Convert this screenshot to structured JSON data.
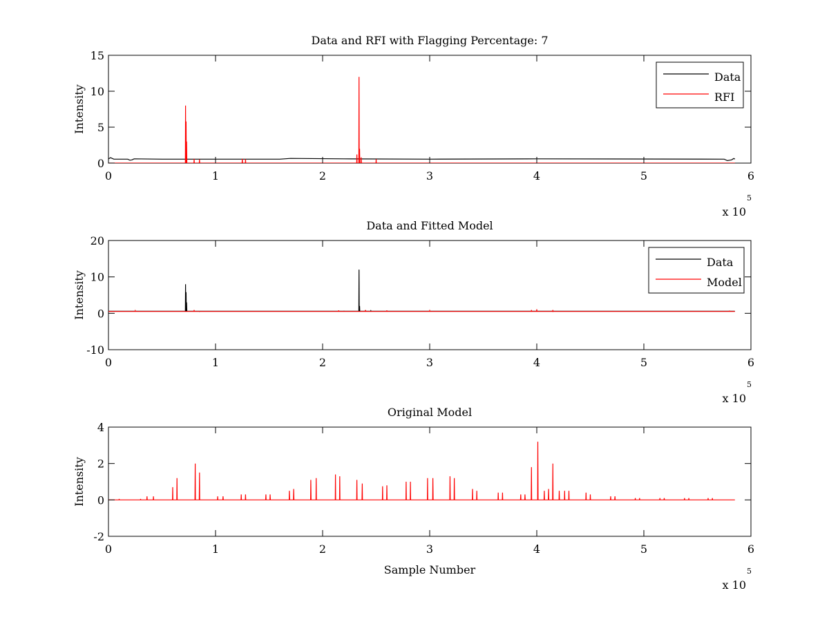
{
  "chart_data": [
    {
      "type": "line",
      "title": "Data and RFI with Flagging Percentage: 7",
      "xlabel": "",
      "ylabel": "Intensity",
      "xlim": [
        0,
        6
      ],
      "ylim": [
        0,
        15
      ],
      "xticks": [
        "0",
        "1",
        "2",
        "3",
        "4",
        "5",
        "6"
      ],
      "yticks": [
        "0",
        "5",
        "10",
        "15"
      ],
      "x_multiplier": "x 10",
      "x_multiplier_exp": "5",
      "legend": {
        "position": "top-right",
        "entries": [
          "Data",
          "RFI"
        ]
      },
      "series": [
        {
          "name": "Data",
          "color": "#000000",
          "baseline": 0.55,
          "points": [
            [
              0.0,
              0.6
            ],
            [
              0.02,
              0.75
            ],
            [
              0.05,
              0.55
            ],
            [
              0.18,
              0.55
            ],
            [
              0.2,
              0.4
            ],
            [
              0.22,
              0.45
            ],
            [
              0.24,
              0.6
            ],
            [
              0.5,
              0.55
            ],
            [
              1.6,
              0.55
            ],
            [
              1.7,
              0.65
            ],
            [
              2.2,
              0.6
            ],
            [
              3.0,
              0.55
            ],
            [
              4.0,
              0.6
            ],
            [
              5.75,
              0.55
            ],
            [
              5.78,
              0.35
            ],
            [
              5.82,
              0.45
            ],
            [
              5.84,
              0.65
            ],
            [
              5.85,
              0.55
            ]
          ]
        },
        {
          "name": "RFI",
          "color": "#ff0000",
          "spikes": [
            [
              0.72,
              8.0
            ],
            [
              0.725,
              5.8
            ],
            [
              0.73,
              3.0
            ],
            [
              0.8,
              0.6
            ],
            [
              0.85,
              0.5
            ],
            [
              1.25,
              0.6
            ],
            [
              1.28,
              0.55
            ],
            [
              2.32,
              1.2
            ],
            [
              2.34,
              12.0
            ],
            [
              2.345,
              2.0
            ],
            [
              2.36,
              0.8
            ],
            [
              2.5,
              0.55
            ]
          ]
        }
      ]
    },
    {
      "type": "line",
      "title": "Data and Fitted Model",
      "xlabel": "",
      "ylabel": "Intensity",
      "xlim": [
        0,
        6
      ],
      "ylim": [
        -10,
        20
      ],
      "xticks": [
        "0",
        "1",
        "2",
        "3",
        "4",
        "5",
        "6"
      ],
      "yticks": [
        "-10",
        "0",
        "10",
        "20"
      ],
      "x_multiplier": "x 10",
      "x_multiplier_exp": "5",
      "legend": {
        "position": "top-right",
        "entries": [
          "Data",
          "Model"
        ]
      },
      "series": [
        {
          "name": "Data",
          "color": "#000000",
          "baseline": 0.55,
          "spikes": [
            [
              0.72,
              8.0
            ],
            [
              0.725,
              5.8
            ],
            [
              0.73,
              3.0
            ],
            [
              0.8,
              0.6
            ],
            [
              0.85,
              0.5
            ],
            [
              2.2,
              0.6
            ],
            [
              2.34,
              12.0
            ],
            [
              2.345,
              2.0
            ],
            [
              2.4,
              0.8
            ],
            [
              2.45,
              0.7
            ],
            [
              3.0,
              0.55
            ],
            [
              4.0,
              0.6
            ],
            [
              4.15,
              0.5
            ]
          ]
        },
        {
          "name": "Model",
          "color": "#ff0000",
          "baseline": 0.5,
          "spikes": [
            [
              0.25,
              0.7
            ],
            [
              0.8,
              0.9
            ],
            [
              2.15,
              0.8
            ],
            [
              2.4,
              0.9
            ],
            [
              2.6,
              0.8
            ],
            [
              3.0,
              0.7
            ],
            [
              3.95,
              0.9
            ],
            [
              4.0,
              1.1
            ],
            [
              4.15,
              0.9
            ],
            [
              5.8,
              0.6
            ]
          ]
        }
      ]
    },
    {
      "type": "line",
      "title": "Original Model",
      "xlabel": "Sample Number",
      "ylabel": "Intensity",
      "xlim": [
        0,
        6
      ],
      "ylim": [
        -2,
        4
      ],
      "xticks": [
        "0",
        "1",
        "2",
        "3",
        "4",
        "5",
        "6"
      ],
      "yticks": [
        "-2",
        "0",
        "2",
        "4"
      ],
      "x_multiplier": "x 10",
      "x_multiplier_exp": "5",
      "series": [
        {
          "name": "",
          "color": "#ff0000",
          "baseline": 0.0,
          "x_end": 5.85,
          "spikes": [
            [
              0.1,
              0.05
            ],
            [
              0.3,
              0.05
            ],
            [
              0.36,
              0.2
            ],
            [
              0.42,
              0.2
            ],
            [
              0.6,
              0.7
            ],
            [
              0.64,
              1.2
            ],
            [
              0.81,
              2.0
            ],
            [
              0.85,
              1.5
            ],
            [
              1.02,
              0.2
            ],
            [
              1.07,
              0.2
            ],
            [
              1.24,
              0.3
            ],
            [
              1.28,
              0.3
            ],
            [
              1.47,
              0.3
            ],
            [
              1.51,
              0.3
            ],
            [
              1.69,
              0.5
            ],
            [
              1.73,
              0.6
            ],
            [
              1.89,
              1.1
            ],
            [
              1.94,
              1.2
            ],
            [
              2.12,
              1.4
            ],
            [
              2.16,
              1.3
            ],
            [
              2.32,
              1.1
            ],
            [
              2.37,
              0.9
            ],
            [
              2.56,
              0.75
            ],
            [
              2.6,
              0.8
            ],
            [
              2.78,
              1.0
            ],
            [
              2.82,
              1.0
            ],
            [
              2.98,
              1.2
            ],
            [
              3.03,
              1.2
            ],
            [
              3.19,
              1.3
            ],
            [
              3.23,
              1.2
            ],
            [
              3.4,
              0.6
            ],
            [
              3.44,
              0.5
            ],
            [
              3.64,
              0.4
            ],
            [
              3.68,
              0.4
            ],
            [
              3.85,
              0.3
            ],
            [
              3.89,
              0.3
            ],
            [
              3.95,
              1.8
            ],
            [
              4.01,
              3.2
            ],
            [
              4.07,
              0.5
            ],
            [
              4.11,
              0.6
            ],
            [
              4.15,
              2.0
            ],
            [
              4.21,
              0.5
            ],
            [
              4.26,
              0.5
            ],
            [
              4.3,
              0.5
            ],
            [
              4.46,
              0.4
            ],
            [
              4.5,
              0.3
            ],
            [
              4.69,
              0.2
            ],
            [
              4.73,
              0.2
            ],
            [
              4.92,
              0.1
            ],
            [
              4.96,
              0.1
            ],
            [
              5.15,
              0.1
            ],
            [
              5.19,
              0.1
            ],
            [
              5.38,
              0.1
            ],
            [
              5.42,
              0.1
            ],
            [
              5.6,
              0.1
            ],
            [
              5.64,
              0.1
            ]
          ]
        }
      ]
    }
  ]
}
